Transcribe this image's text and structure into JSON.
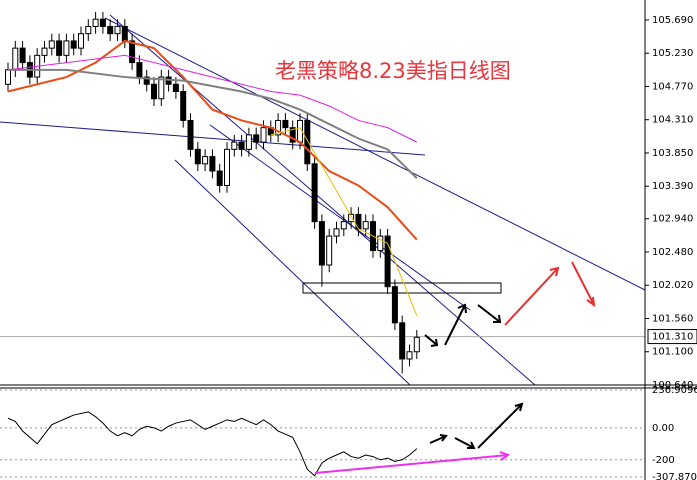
{
  "chart_data": {
    "type": "candlestick",
    "title": "老黑策略8.23美指日线图",
    "open": [
      104.8,
      105.0,
      105.3,
      105.1,
      104.9,
      105.2,
      105.3,
      105.4,
      105.2,
      105.4,
      105.3,
      105.5,
      105.6,
      105.7,
      105.6,
      105.5,
      105.6,
      105.4,
      105.1,
      104.9,
      104.8,
      104.6,
      104.9,
      104.8,
      104.7,
      104.3,
      103.9,
      103.7,
      103.8,
      103.6,
      103.4,
      103.9,
      104.0,
      103.9,
      104.1,
      104.0,
      104.2,
      104.1,
      104.3,
      104.2,
      104.0,
      104.3,
      103.7,
      102.9,
      102.3,
      102.7,
      102.8,
      102.9,
      103.0,
      102.8,
      102.9,
      102.5,
      102.7,
      102.0,
      101.5,
      101.0,
      101.1
    ],
    "high": [
      105.1,
      105.4,
      105.4,
      105.2,
      105.3,
      105.4,
      105.5,
      105.5,
      105.5,
      105.5,
      105.6,
      105.7,
      105.8,
      105.8,
      105.7,
      105.7,
      105.7,
      105.5,
      105.2,
      105.0,
      104.9,
      105.0,
      105.0,
      104.9,
      104.8,
      104.4,
      104.0,
      103.9,
      103.9,
      103.7,
      104.0,
      104.1,
      104.1,
      104.2,
      104.2,
      104.3,
      104.3,
      104.4,
      104.4,
      104.3,
      104.4,
      104.4,
      103.8,
      103.0,
      102.8,
      102.9,
      103.0,
      103.1,
      103.1,
      103.0,
      103.0,
      102.8,
      102.8,
      102.1,
      101.6,
      101.2,
      101.4
    ],
    "low": [
      104.7,
      104.9,
      105.0,
      104.8,
      104.8,
      105.1,
      105.2,
      105.1,
      105.1,
      105.2,
      105.2,
      105.4,
      105.5,
      105.5,
      105.4,
      105.4,
      105.3,
      105.0,
      104.8,
      104.7,
      104.5,
      104.5,
      104.7,
      104.6,
      104.2,
      103.8,
      103.6,
      103.6,
      103.5,
      103.3,
      103.3,
      103.8,
      103.8,
      103.8,
      103.9,
      103.9,
      104.0,
      104.0,
      104.1,
      103.9,
      103.9,
      103.6,
      102.8,
      102.0,
      102.2,
      102.6,
      102.7,
      102.8,
      102.7,
      102.7,
      102.4,
      102.4,
      101.9,
      101.4,
      100.8,
      100.9,
      101.0
    ],
    "close": [
      105.0,
      105.3,
      105.1,
      104.9,
      105.2,
      105.3,
      105.4,
      105.2,
      105.4,
      105.3,
      105.5,
      105.6,
      105.7,
      105.6,
      105.5,
      105.6,
      105.4,
      105.1,
      104.9,
      104.8,
      104.6,
      104.9,
      104.8,
      104.7,
      104.3,
      103.9,
      103.7,
      103.8,
      103.6,
      103.4,
      103.9,
      104.0,
      103.9,
      104.1,
      104.0,
      104.2,
      104.1,
      104.3,
      104.2,
      104.0,
      104.3,
      103.7,
      102.9,
      102.3,
      102.7,
      102.8,
      102.9,
      103.0,
      102.8,
      102.9,
      102.5,
      102.7,
      102.0,
      101.5,
      101.0,
      101.1,
      101.3
    ],
    "ylim": [
      100.64,
      105.966
    ],
    "yticks": [
      {
        "value": 105.69,
        "label": "105.690"
      },
      {
        "value": 105.23,
        "label": "105.230"
      },
      {
        "value": 104.77,
        "label": "104.770"
      },
      {
        "value": 104.31,
        "label": "104.310"
      },
      {
        "value": 103.85,
        "label": "103.850"
      },
      {
        "value": 103.39,
        "label": "103.390"
      },
      {
        "value": 102.94,
        "label": "102.940"
      },
      {
        "value": 102.48,
        "label": "102.480"
      },
      {
        "value": 102.02,
        "label": "102.020"
      },
      {
        "value": 101.56,
        "label": "101.560"
      },
      {
        "value": 101.1,
        "label": "101.100"
      },
      {
        "value": 100.64,
        "label": "100.640"
      }
    ],
    "current_price": {
      "value": 101.31,
      "label": "101.310"
    },
    "series": [
      {
        "color": "#f04a14",
        "x": [
          0,
          8,
          12,
          16,
          20,
          24,
          28,
          32,
          36,
          40,
          44,
          48,
          52,
          56
        ],
        "values": [
          104.7,
          104.9,
          105.1,
          105.4,
          105.3,
          104.9,
          104.45,
          104.3,
          104.2,
          104.0,
          103.6,
          103.4,
          103.1,
          102.65
        ]
      },
      {
        "color": "#808080",
        "x": [
          0,
          8,
          16,
          24,
          32,
          36,
          40,
          44,
          48,
          52,
          56
        ],
        "values": [
          105.0,
          105.0,
          104.9,
          104.85,
          104.7,
          104.6,
          104.45,
          104.25,
          104.05,
          103.9,
          103.5
        ]
      },
      {
        "color": "#e020e0",
        "x": [
          0,
          8,
          16,
          24,
          32,
          36,
          40,
          44,
          48,
          52,
          56
        ],
        "values": [
          105.0,
          105.1,
          105.2,
          105.0,
          104.8,
          104.7,
          104.65,
          104.5,
          104.3,
          104.2,
          104.0
        ]
      },
      {
        "color": "#e8c000",
        "x": [
          36,
          40,
          44,
          48,
          52,
          56
        ],
        "values": [
          104.1,
          104.2,
          103.5,
          102.8,
          102.6,
          101.6
        ]
      }
    ],
    "indicator": {
      "color": "#000000",
      "values": [
        60,
        40,
        -20,
        -60,
        -100,
        -40,
        20,
        40,
        60,
        80,
        90,
        100,
        70,
        30,
        -20,
        -50,
        -30,
        -50,
        -10,
        10,
        0,
        -20,
        10,
        30,
        40,
        50,
        20,
        -10,
        10,
        30,
        50,
        40,
        60,
        40,
        20,
        50,
        20,
        -20,
        -40,
        -60,
        -150,
        -260,
        -300,
        -220,
        -190,
        -170,
        -150,
        -180,
        -190,
        -170,
        -180,
        -200,
        -190,
        -210,
        -200,
        -170,
        -130
      ],
      "ylim": [
        -307.8706,
        236.9096
      ],
      "yticks": [
        {
          "value": 236.9096,
          "label": "236.9096"
        },
        {
          "value": 0,
          "label": "0.00"
        },
        -200,
        {
          "value": -307.8706,
          "label": "-307.8706"
        }
      ]
    }
  }
}
